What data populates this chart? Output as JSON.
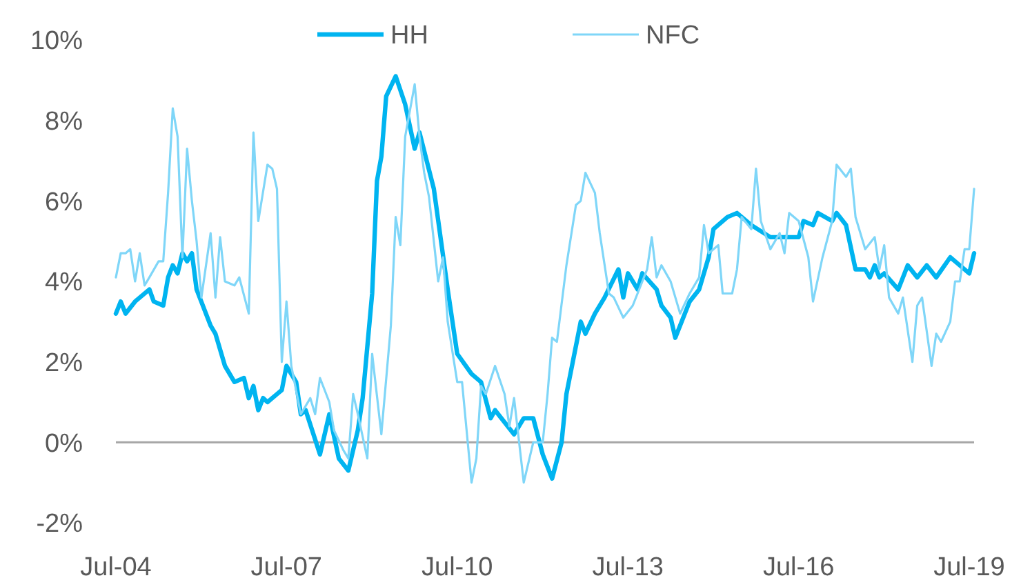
{
  "chart_data": {
    "type": "line",
    "legend": "top",
    "ylim": [
      -2,
      10
    ],
    "yticks": [
      {
        "value": -2,
        "label": "-2%"
      },
      {
        "value": 0,
        "label": "0%"
      },
      {
        "value": 2,
        "label": "2%"
      },
      {
        "value": 4,
        "label": "4%"
      },
      {
        "value": 6,
        "label": "6%"
      },
      {
        "value": 8,
        "label": "8%"
      },
      {
        "value": 10,
        "label": "10%"
      }
    ],
    "xlim": [
      "2004-07",
      "2019-08"
    ],
    "xticks": [
      {
        "value": "2004-07",
        "label": "Jul-04"
      },
      {
        "value": "2007-07",
        "label": "Jul-07"
      },
      {
        "value": "2010-07",
        "label": "Jul-10"
      },
      {
        "value": "2013-07",
        "label": "Jul-13"
      },
      {
        "value": "2016-07",
        "label": "Jul-16"
      },
      {
        "value": "2019-07",
        "label": "Jul-19"
      }
    ],
    "grid": false,
    "ref_lines": [
      {
        "axis": "y",
        "value": 0,
        "label": null,
        "color": "#a6a6a6"
      }
    ],
    "series": [
      {
        "name": "HH",
        "color": "#00b4f0",
        "x": [
          "2004-07",
          "2004-08",
          "2004-09",
          "2004-11",
          "2005-02",
          "2005-03",
          "2005-05",
          "2005-06",
          "2005-07",
          "2005-08",
          "2005-09",
          "2005-10",
          "2005-11",
          "2005-12",
          "2006-03",
          "2006-04",
          "2006-06",
          "2006-08",
          "2006-10",
          "2006-11",
          "2006-12",
          "2007-01",
          "2007-02",
          "2007-03",
          "2007-05",
          "2007-06",
          "2007-07",
          "2007-09",
          "2007-10",
          "2007-11",
          "2008-02",
          "2008-04",
          "2008-06",
          "2008-08",
          "2008-10",
          "2008-11",
          "2009-01",
          "2009-02",
          "2009-03",
          "2009-04",
          "2009-06",
          "2009-08",
          "2009-10",
          "2009-11",
          "2010-02",
          "2010-05",
          "2010-07",
          "2010-10",
          "2010-12",
          "2011-02",
          "2011-03",
          "2011-07",
          "2011-09",
          "2011-11",
          "2012-01",
          "2012-03",
          "2012-05",
          "2012-06",
          "2012-09",
          "2012-10",
          "2012-12",
          "2013-02",
          "2013-05",
          "2013-06",
          "2013-07",
          "2013-09",
          "2013-10",
          "2014-01",
          "2014-02",
          "2014-04",
          "2014-05",
          "2014-08",
          "2014-10",
          "2014-12",
          "2015-01",
          "2015-04",
          "2015-06",
          "2015-09",
          "2016-01",
          "2016-04",
          "2016-07",
          "2016-08",
          "2016-10",
          "2016-11",
          "2017-02",
          "2017-03",
          "2017-05",
          "2017-07",
          "2017-09",
          "2017-10",
          "2017-11",
          "2017-12",
          "2018-01",
          "2018-04",
          "2018-06",
          "2018-08",
          "2018-10",
          "2018-12",
          "2019-03",
          "2019-04",
          "2019-07",
          "2019-08"
        ],
        "values": [
          3.2,
          3.5,
          3.2,
          3.5,
          3.8,
          3.5,
          3.4,
          4.1,
          4.4,
          4.2,
          4.7,
          4.5,
          4.7,
          3.8,
          2.9,
          2.7,
          1.9,
          1.5,
          1.6,
          1.1,
          1.4,
          0.8,
          1.1,
          1.0,
          1.2,
          1.3,
          1.9,
          1.5,
          0.7,
          0.8,
          -0.3,
          0.7,
          -0.4,
          -0.7,
          0.3,
          1.1,
          3.7,
          6.5,
          7.1,
          8.6,
          9.1,
          8.4,
          7.3,
          7.7,
          6.3,
          3.8,
          2.2,
          1.7,
          1.5,
          0.6,
          0.8,
          0.2,
          0.6,
          0.6,
          -0.3,
          -0.9,
          0.0,
          1.2,
          3.0,
          2.7,
          3.2,
          3.6,
          4.3,
          3.6,
          4.2,
          3.8,
          4.2,
          3.8,
          3.4,
          3.1,
          2.6,
          3.5,
          3.8,
          4.6,
          5.3,
          5.6,
          5.7,
          5.4,
          5.1,
          5.1,
          5.1,
          5.5,
          5.4,
          5.7,
          5.5,
          5.7,
          5.4,
          4.3,
          4.3,
          4.1,
          4.4,
          4.1,
          4.2,
          3.8,
          4.4,
          4.1,
          4.4,
          4.1,
          4.6,
          4.5,
          4.2,
          4.7
        ]
      },
      {
        "name": "NFC",
        "color": "#7fd6f8",
        "x": [
          "2004-07",
          "2004-08",
          "2004-09",
          "2004-10",
          "2004-11",
          "2004-12",
          "2005-01",
          "2005-02",
          "2005-04",
          "2005-05",
          "2005-06",
          "2005-07",
          "2005-08",
          "2005-09",
          "2005-10",
          "2005-11",
          "2005-12",
          "2006-01",
          "2006-03",
          "2006-04",
          "2006-05",
          "2006-06",
          "2006-08",
          "2006-09",
          "2006-11",
          "2006-12",
          "2007-01",
          "2007-03",
          "2007-04",
          "2007-05",
          "2007-06",
          "2007-07",
          "2007-08",
          "2007-10",
          "2007-12",
          "2008-01",
          "2008-02",
          "2008-04",
          "2008-05",
          "2008-07",
          "2008-08",
          "2008-09",
          "2008-10",
          "2008-12",
          "2009-01",
          "2009-03",
          "2009-05",
          "2009-06",
          "2009-07",
          "2009-08",
          "2009-10",
          "2009-11",
          "2009-12",
          "2010-01",
          "2010-03",
          "2010-04",
          "2010-05",
          "2010-07",
          "2010-08",
          "2010-10",
          "2010-11",
          "2010-12",
          "2011-01",
          "2011-03",
          "2011-05",
          "2011-06",
          "2011-07",
          "2011-09",
          "2011-11",
          "2012-01",
          "2012-02",
          "2012-03",
          "2012-04",
          "2012-06",
          "2012-08",
          "2012-09",
          "2012-10",
          "2012-12",
          "2013-01",
          "2013-03",
          "2013-04",
          "2013-06",
          "2013-08",
          "2013-11",
          "2013-12",
          "2014-01",
          "2014-02",
          "2014-04",
          "2014-06",
          "2014-08",
          "2014-10",
          "2014-11",
          "2014-12",
          "2015-02",
          "2015-03",
          "2015-05",
          "2015-06",
          "2015-07",
          "2015-09",
          "2015-10",
          "2015-11",
          "2016-01",
          "2016-03",
          "2016-04",
          "2016-05",
          "2016-07",
          "2016-09",
          "2016-10",
          "2016-12",
          "2017-02",
          "2017-03",
          "2017-05",
          "2017-06",
          "2017-07",
          "2017-09",
          "2017-11",
          "2017-12",
          "2018-01",
          "2018-02",
          "2018-04",
          "2018-05",
          "2018-07",
          "2018-08",
          "2018-09",
          "2018-11",
          "2018-12",
          "2019-01",
          "2019-03",
          "2019-04",
          "2019-05",
          "2019-06",
          "2019-07",
          "2019-08"
        ],
        "values": [
          4.1,
          4.7,
          4.7,
          4.8,
          4.0,
          4.7,
          3.9,
          4.1,
          4.5,
          4.5,
          6.2,
          8.3,
          7.6,
          4.6,
          7.3,
          6.0,
          5.0,
          3.6,
          5.2,
          3.6,
          5.1,
          4.0,
          3.9,
          4.1,
          3.2,
          7.7,
          5.5,
          6.9,
          6.8,
          6.3,
          2.0,
          3.5,
          1.9,
          0.7,
          1.1,
          0.7,
          1.6,
          1.0,
          0.3,
          -0.2,
          -0.4,
          1.2,
          0.7,
          -0.4,
          2.2,
          0.2,
          2.9,
          5.6,
          4.9,
          7.6,
          8.9,
          7.6,
          6.7,
          6.1,
          4.0,
          4.6,
          3.0,
          1.5,
          1.5,
          -1.0,
          -0.4,
          1.4,
          1.2,
          1.9,
          1.2,
          0.4,
          1.1,
          -1.0,
          0.0,
          0.0,
          1.2,
          2.6,
          2.5,
          4.4,
          5.9,
          6.0,
          6.7,
          6.2,
          5.2,
          3.7,
          3.6,
          3.1,
          3.4,
          4.3,
          5.1,
          4.1,
          4.4,
          4.0,
          3.2,
          3.7,
          4.1,
          5.4,
          4.7,
          4.9,
          3.7,
          3.7,
          4.3,
          5.6,
          5.3,
          6.8,
          5.5,
          4.8,
          5.2,
          4.7,
          5.7,
          5.5,
          4.6,
          3.5,
          4.6,
          5.5,
          6.9,
          6.6,
          6.8,
          5.6,
          4.8,
          5.1,
          4.3,
          4.9,
          3.6,
          3.2,
          3.6,
          2.0,
          3.4,
          3.6,
          1.9,
          2.7,
          2.5,
          3.0,
          4.0,
          4.0,
          4.8,
          4.8,
          6.3
        ]
      }
    ]
  }
}
